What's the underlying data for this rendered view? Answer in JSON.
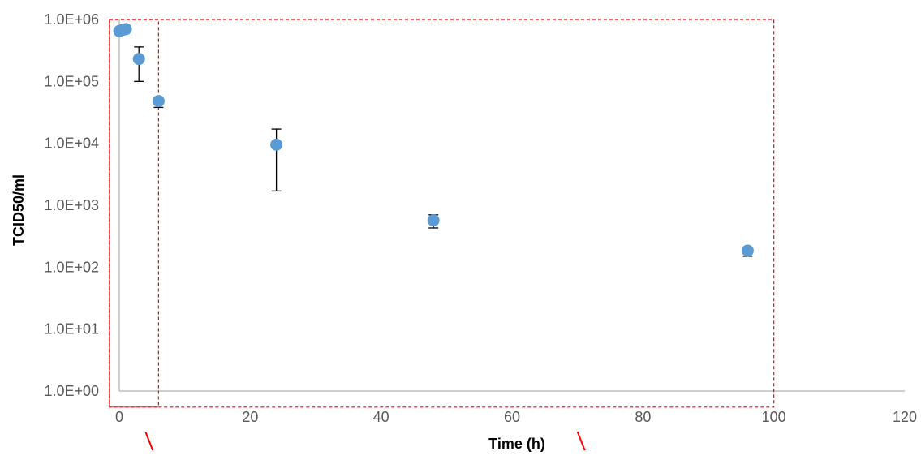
{
  "chart_data": {
    "type": "scatter",
    "title": "",
    "xlabel": "Time (h)",
    "ylabel": "TCID50/ml",
    "xlim": [
      0,
      120
    ],
    "ylim": [
      1,
      1000000
    ],
    "yscale": "log",
    "grid": false,
    "x_ticks": [
      0,
      20,
      40,
      60,
      80,
      100,
      120
    ],
    "x_tick_labels": [
      "0",
      "20",
      "40",
      "60",
      "80",
      "100",
      "120"
    ],
    "y_ticks": [
      1,
      10,
      100,
      1000,
      10000,
      100000,
      1000000
    ],
    "y_tick_labels": [
      "1.0E+00",
      "1.0E+01",
      "1.0E+02",
      "1.0E+03",
      "1.0E+04",
      "1.0E+05",
      "1.0E+06"
    ],
    "series": [
      {
        "color": "#5b9bd5",
        "points": [
          {
            "x": 0,
            "y": 650000
          },
          {
            "x": 0.5,
            "y": 680000
          },
          {
            "x": 1,
            "y": 700000
          },
          {
            "x": 3,
            "y": 230000,
            "err_low": 100000,
            "err_high": 360000
          },
          {
            "x": 6,
            "y": 48000,
            "err_low": 38000,
            "err_high": 55000
          },
          {
            "x": 24,
            "y": 9500,
            "err_low": 1700,
            "err_high": 17000
          },
          {
            "x": 48,
            "y": 570,
            "err_low": 430,
            "err_high": 700
          },
          {
            "x": 96,
            "y": 185,
            "err_low": 150,
            "err_high": 210
          }
        ]
      }
    ],
    "annotations": {
      "color": "#ff0000",
      "boxes": [
        {
          "x0": -1.5,
          "x1": 100,
          "y0": 0.55,
          "y1": 1000000
        },
        {
          "x0": -1.5,
          "x1": 6,
          "y0": 0.55,
          "y1": 1000000
        }
      ],
      "slashes": [
        {
          "x": 4,
          "y_from": 0.22,
          "y_to": 0.11
        },
        {
          "x": 70,
          "y_from": 0.22,
          "y_to": 0.11
        }
      ]
    }
  }
}
